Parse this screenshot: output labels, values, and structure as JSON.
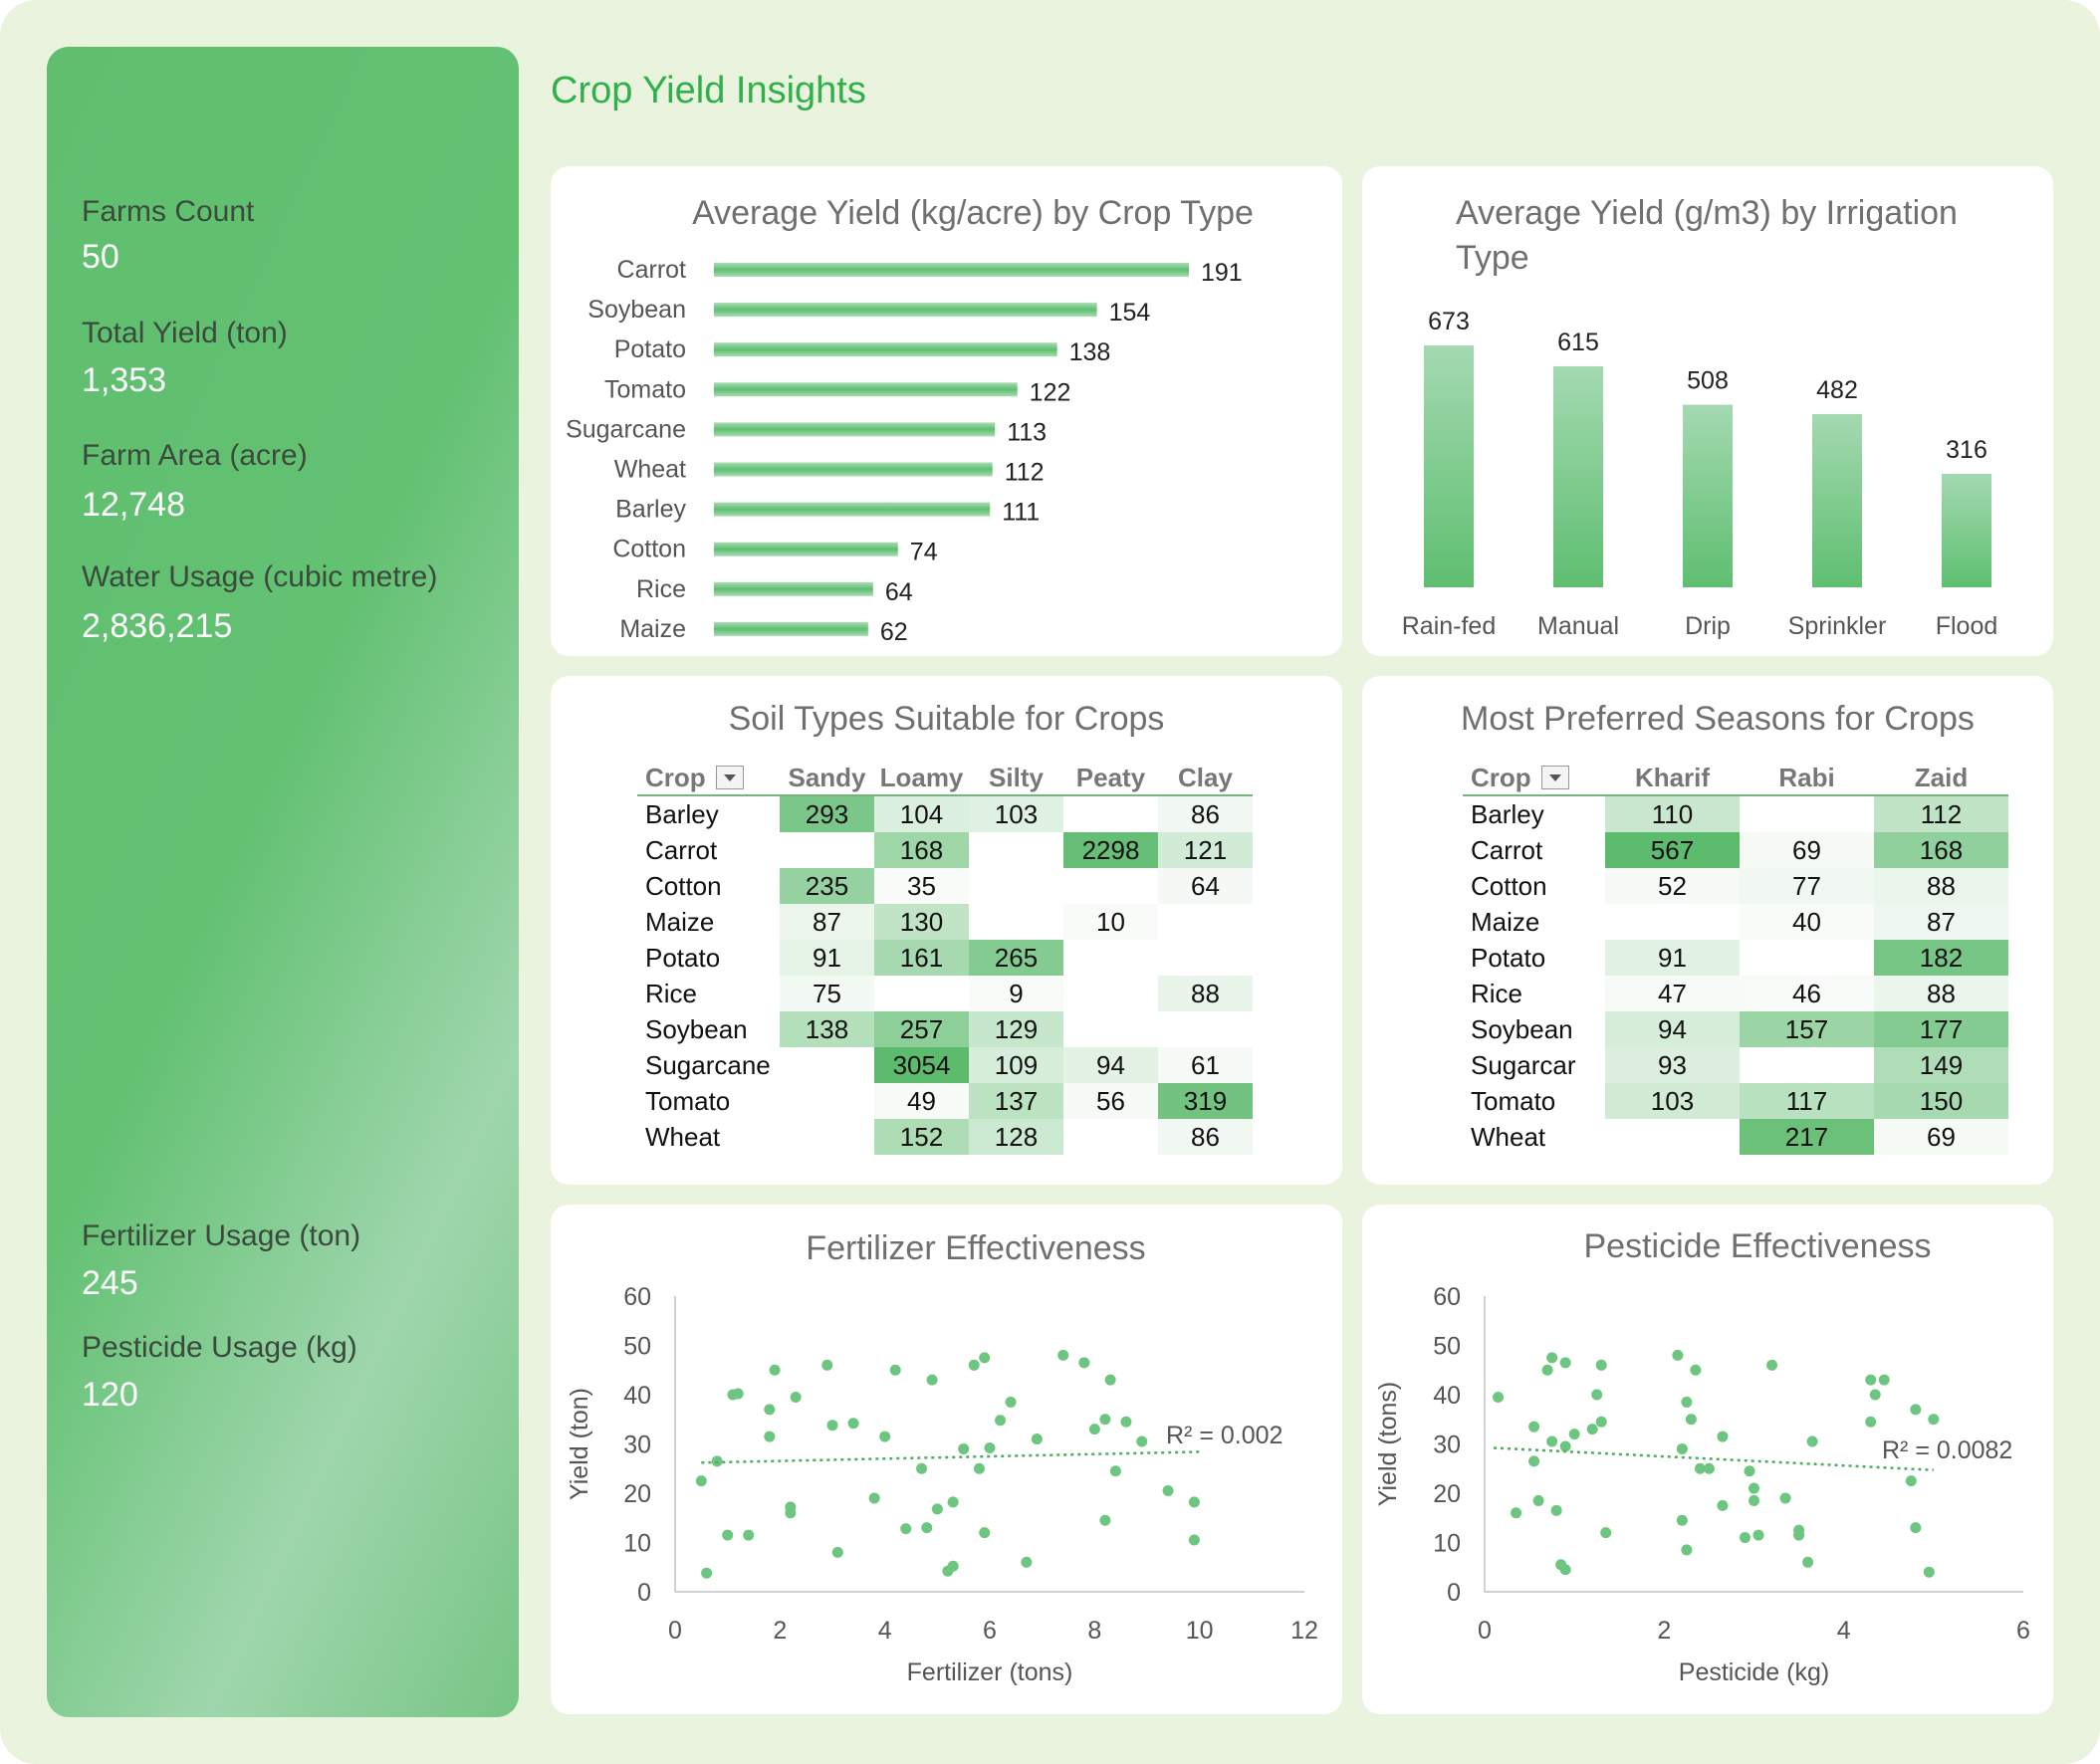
{
  "title": "Crop Yield Insights",
  "colors": {
    "accent": "#2eb04b",
    "bar": "#6cc680",
    "point": "#6cc680",
    "heat_max": "#5dbb6e"
  },
  "kpis": {
    "farms_count": {
      "label": "Farms Count",
      "value": "50"
    },
    "total_yield": {
      "label": "Total Yield (ton)",
      "value": "1,353"
    },
    "farm_area": {
      "label": "Farm Area (acre)",
      "value": "12,748"
    },
    "water_usage": {
      "label": "Water Usage (cubic metre)",
      "value": "2,836,215"
    },
    "fertilizer_usage": {
      "label": "Fertilizer Usage (ton)",
      "value": "245"
    },
    "pesticide_usage": {
      "label": "Pesticide Usage (kg)",
      "value": "120"
    }
  },
  "soil_table": {
    "title": "Soil Types Suitable for Crops",
    "columns": [
      "Crop",
      "Sandy",
      "Loamy",
      "Silty",
      "Peaty",
      "Clay"
    ],
    "rows": [
      [
        "Barley",
        "293",
        "104",
        "103",
        "",
        "86"
      ],
      [
        "Carrot",
        "",
        "168",
        "",
        "2298",
        "121"
      ],
      [
        "Cotton",
        "235",
        "35",
        "",
        "",
        "64"
      ],
      [
        "Maize",
        "87",
        "130",
        "",
        "10",
        ""
      ],
      [
        "Potato",
        "91",
        "161",
        "265",
        "",
        ""
      ],
      [
        "Rice",
        "75",
        "",
        "9",
        "",
        "88"
      ],
      [
        "Soybean",
        "138",
        "257",
        "129",
        "",
        ""
      ],
      [
        "Sugarcane",
        "",
        "3054",
        "109",
        "94",
        "61"
      ],
      [
        "Tomato",
        "",
        "49",
        "137",
        "56",
        "319"
      ],
      [
        "Wheat",
        "",
        "152",
        "128",
        "",
        "86"
      ]
    ]
  },
  "season_table": {
    "title": "Most Preferred Seasons for Crops",
    "columns": [
      "Crop",
      "Kharif",
      "Rabi",
      "Zaid"
    ],
    "rows": [
      [
        "Barley",
        "110",
        "",
        "112"
      ],
      [
        "Carrot",
        "567",
        "69",
        "168"
      ],
      [
        "Cotton",
        "52",
        "77",
        "88"
      ],
      [
        "Maize",
        "",
        "40",
        "87"
      ],
      [
        "Potato",
        "91",
        "",
        "182"
      ],
      [
        "Rice",
        "47",
        "46",
        "88"
      ],
      [
        "Soybean",
        "94",
        "157",
        "177"
      ],
      [
        "Sugarcar",
        "93",
        "",
        "149"
      ],
      [
        "Tomato",
        "103",
        "117",
        "150"
      ],
      [
        "Wheat",
        "",
        "217",
        "69"
      ]
    ]
  },
  "chart_data": [
    {
      "type": "bar",
      "orientation": "horizontal",
      "title": "Average Yield (kg/acre) by Crop Type",
      "categories": [
        "Carrot",
        "Soybean",
        "Potato",
        "Tomato",
        "Sugarcane",
        "Wheat",
        "Barley",
        "Cotton",
        "Rice",
        "Maize"
      ],
      "values": [
        191,
        154,
        138,
        122,
        113,
        112,
        111,
        74,
        64,
        62
      ],
      "grid": false
    },
    {
      "type": "bar",
      "orientation": "vertical",
      "title": "Average Yield (g/m3) by Irrigation Type",
      "categories": [
        "Rain-fed",
        "Manual",
        "Drip",
        "Sprinkler",
        "Flood"
      ],
      "values": [
        673,
        615,
        508,
        482,
        316
      ],
      "grid": false
    },
    {
      "type": "scatter",
      "title": "Fertilizer Effectiveness",
      "xlabel": "Fertilizer (tons)",
      "ylabel": "Yield (ton)",
      "xlim": [
        0,
        12
      ],
      "ylim": [
        0,
        60
      ],
      "xticks": [
        "0",
        "2",
        "4",
        "6",
        "8",
        "10",
        "12"
      ],
      "yticks": [
        "0",
        "10",
        "20",
        "30",
        "40",
        "50",
        "60"
      ],
      "r2_label": "R² = 0.002",
      "trendline": [
        [
          0.5,
          26.2
        ],
        [
          10,
          28.4
        ]
      ],
      "points": [
        [
          0.5,
          22.5
        ],
        [
          0.6,
          3.8
        ],
        [
          0.8,
          26.5
        ],
        [
          1.0,
          11.5
        ],
        [
          1.1,
          40
        ],
        [
          1.2,
          40.2
        ],
        [
          1.4,
          11.5
        ],
        [
          1.8,
          37
        ],
        [
          1.8,
          31.5
        ],
        [
          1.9,
          45
        ],
        [
          2.2,
          17.2
        ],
        [
          2.2,
          16
        ],
        [
          2.3,
          39.5
        ],
        [
          2.9,
          46
        ],
        [
          3.0,
          33.8
        ],
        [
          3.1,
          8
        ],
        [
          3.4,
          34.2
        ],
        [
          3.8,
          19
        ],
        [
          4.0,
          31.5
        ],
        [
          4.2,
          45
        ],
        [
          4.4,
          12.8
        ],
        [
          4.7,
          25
        ],
        [
          4.8,
          13
        ],
        [
          4.9,
          43
        ],
        [
          5.0,
          16.8
        ],
        [
          5.2,
          4.2
        ],
        [
          5.3,
          5.2
        ],
        [
          5.3,
          18.2
        ],
        [
          5.5,
          29
        ],
        [
          5.7,
          46
        ],
        [
          5.8,
          25
        ],
        [
          5.9,
          47.5
        ],
        [
          5.9,
          12
        ],
        [
          6.0,
          29.2
        ],
        [
          6.2,
          34.8
        ],
        [
          6.4,
          38.5
        ],
        [
          6.7,
          6
        ],
        [
          6.9,
          31
        ],
        [
          7.4,
          48
        ],
        [
          7.8,
          46.5
        ],
        [
          8.0,
          33
        ],
        [
          8.2,
          14.5
        ],
        [
          8.2,
          35
        ],
        [
          8.3,
          43
        ],
        [
          8.4,
          24.5
        ],
        [
          8.6,
          34.5
        ],
        [
          8.9,
          30.5
        ],
        [
          9.4,
          20.5
        ],
        [
          9.9,
          18.2
        ],
        [
          9.9,
          10.5
        ]
      ]
    },
    {
      "type": "scatter",
      "title": "Pesticide Effectiveness",
      "xlabel": "Pesticide (kg)",
      "ylabel": "Yield (tons)",
      "xlim": [
        0,
        6
      ],
      "ylim": [
        0,
        60
      ],
      "xticks": [
        "0",
        "2",
        "4",
        "6"
      ],
      "yticks": [
        "0",
        "10",
        "20",
        "30",
        "40",
        "50",
        "60"
      ],
      "r2_label": "R² = 0.0082",
      "trendline": [
        [
          0.1,
          29.2
        ],
        [
          5.0,
          24.7
        ]
      ],
      "points": [
        [
          0.15,
          39.5
        ],
        [
          0.35,
          16
        ],
        [
          0.55,
          26.5
        ],
        [
          0.55,
          33.5
        ],
        [
          0.6,
          18.5
        ],
        [
          0.7,
          45
        ],
        [
          0.75,
          30.5
        ],
        [
          0.75,
          47.5
        ],
        [
          0.8,
          16.5
        ],
        [
          0.85,
          5.5
        ],
        [
          0.9,
          29.5
        ],
        [
          0.9,
          46.5
        ],
        [
          0.9,
          4.5
        ],
        [
          1.0,
          32
        ],
        [
          1.2,
          33
        ],
        [
          1.25,
          40
        ],
        [
          1.3,
          46
        ],
        [
          1.3,
          34.5
        ],
        [
          1.35,
          12
        ],
        [
          2.15,
          48
        ],
        [
          2.2,
          29
        ],
        [
          2.2,
          14.5
        ],
        [
          2.25,
          38.5
        ],
        [
          2.25,
          8.5
        ],
        [
          2.3,
          35
        ],
        [
          2.35,
          45
        ],
        [
          2.4,
          25
        ],
        [
          2.5,
          25
        ],
        [
          2.65,
          31.5
        ],
        [
          2.65,
          17.5
        ],
        [
          2.9,
          11
        ],
        [
          2.95,
          24.5
        ],
        [
          3.0,
          18.5
        ],
        [
          3.0,
          21
        ],
        [
          3.05,
          11.5
        ],
        [
          3.2,
          46
        ],
        [
          3.35,
          19
        ],
        [
          3.5,
          12.5
        ],
        [
          3.5,
          11.5
        ],
        [
          3.6,
          6
        ],
        [
          3.65,
          30.5
        ],
        [
          4.3,
          43
        ],
        [
          4.3,
          34.5
        ],
        [
          4.35,
          40
        ],
        [
          4.45,
          43
        ],
        [
          4.75,
          22.5
        ],
        [
          4.8,
          37
        ],
        [
          4.8,
          13
        ],
        [
          4.95,
          4
        ],
        [
          5.0,
          35
        ]
      ]
    }
  ]
}
